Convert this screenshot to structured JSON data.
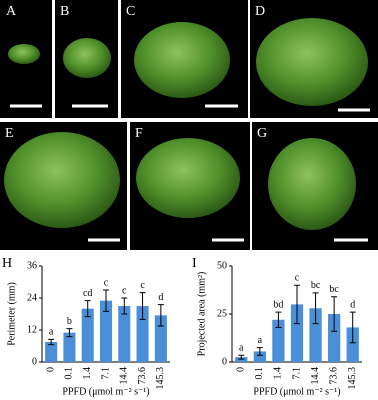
{
  "panels": [
    "A",
    "B",
    "C",
    "D",
    "E",
    "F",
    "G"
  ],
  "chart_data": [
    {
      "type": "bar",
      "title": "H",
      "y_label": "Perimeter (mm)",
      "x_label": "PPFD (μmol m⁻² s⁻¹)",
      "categories": [
        "0",
        "0.1",
        "1.4",
        "7.1",
        "14.4",
        "73.6",
        "145.3"
      ],
      "values": [
        7.5,
        11,
        20,
        23,
        21,
        21,
        17.5
      ],
      "errors": [
        1,
        1.5,
        3,
        4,
        3,
        5,
        4
      ],
      "letters": [
        "a",
        "b",
        "cd",
        "c",
        "c",
        "c",
        "d"
      ],
      "color": "#4a8fd8",
      "ylim": [
        0,
        36
      ],
      "yticks": [
        0,
        12,
        24,
        36
      ]
    },
    {
      "type": "bar",
      "title": "I",
      "y_label": "Projected area (mm²)",
      "x_label": "PPFD (μmol m⁻² s⁻¹)",
      "categories": [
        "0",
        "0.1",
        "1.4",
        "7.1",
        "14.4",
        "73.6",
        "145.3"
      ],
      "values": [
        2.5,
        5.5,
        22,
        30,
        28,
        25,
        18
      ],
      "errors": [
        1,
        2,
        4,
        10,
        8,
        9,
        8
      ],
      "letters": [
        "a",
        "a",
        "bd",
        "c",
        "bc",
        "bc",
        "d"
      ],
      "color": "#4a8fd8",
      "ylim": [
        0,
        50
      ],
      "yticks": [
        0,
        25,
        50
      ]
    }
  ]
}
